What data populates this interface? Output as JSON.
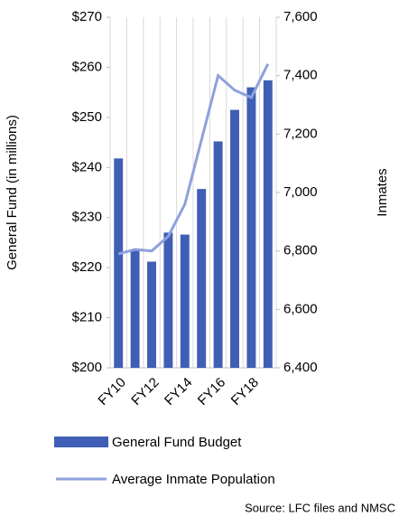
{
  "chart_data": {
    "type": "bar_line",
    "categories": [
      "FY10",
      null,
      "FY12",
      null,
      "FY14",
      null,
      "FY16",
      null,
      "FY18",
      null
    ],
    "series": [
      {
        "name": "General Fund Budget",
        "color": "#3f5fb5",
        "values": [
          241.8,
          223.5,
          221.2,
          227,
          226.6,
          235.7,
          245.2,
          251.5,
          256,
          257.4
        ]
      },
      {
        "name": "Average Inmate Population",
        "color": "#8ea1dc",
        "axis": "y2",
        "values": [
          6790,
          6805,
          6800,
          6850,
          6960,
          7180,
          7400,
          7350,
          7325,
          7440
        ]
      }
    ],
    "ylabel": "General Fund (in millions)",
    "y2label": "Inmates",
    "ylim": [
      200,
      270
    ],
    "yticks": [
      {
        "value": 200,
        "label": "$200"
      },
      {
        "value": 210,
        "label": "$210"
      },
      {
        "value": 220,
        "label": "$220"
      },
      {
        "value": 230,
        "label": "$230"
      },
      {
        "value": 240,
        "label": "$240"
      },
      {
        "value": 250,
        "label": "$250"
      },
      {
        "value": 260,
        "label": "$260"
      },
      {
        "value": 270,
        "label": "$270"
      }
    ],
    "y2lim": [
      6400,
      7600
    ],
    "y2ticks": [
      {
        "value": 6400,
        "label": "6,400"
      },
      {
        "value": 6600,
        "label": "6,600"
      },
      {
        "value": 6800,
        "label": "6,800"
      },
      {
        "value": 7000,
        "label": "7,000"
      },
      {
        "value": 7200,
        "label": "7,200"
      },
      {
        "value": 7400,
        "label": "7,400"
      },
      {
        "value": 7600,
        "label": "7,600"
      }
    ],
    "grid": true,
    "source": "Source: LFC files and NMSC"
  }
}
